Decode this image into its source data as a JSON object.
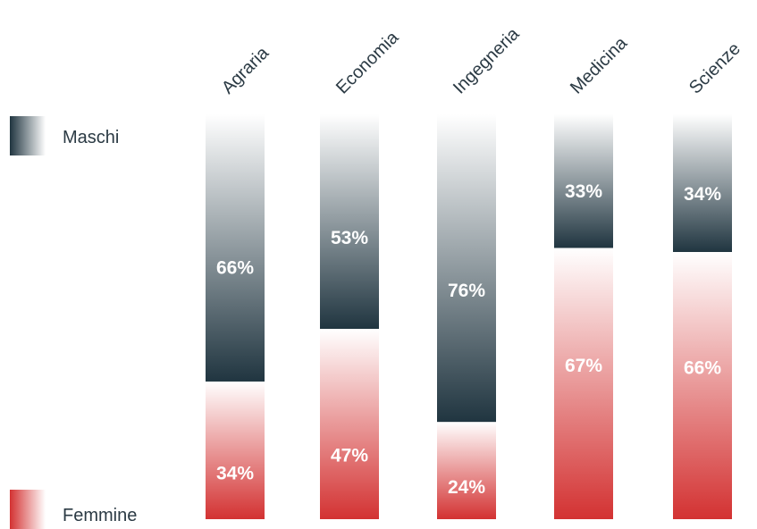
{
  "chart_data": {
    "type": "bar",
    "stacked": true,
    "percent": true,
    "categories": [
      "Agraria",
      "Economia",
      "Ingegneria",
      "Medicina",
      "Scienze"
    ],
    "series": [
      {
        "name": "Maschi",
        "values": [
          66,
          53,
          76,
          33,
          34
        ],
        "labels": [
          "66%",
          "53%",
          "76%",
          "33%",
          "34%"
        ],
        "color_dark": "#203540",
        "color_light": "#ffffff"
      },
      {
        "name": "Femmine",
        "values": [
          34,
          47,
          24,
          67,
          66
        ],
        "labels": [
          "34%",
          "47%",
          "24%",
          "67%",
          "66%"
        ],
        "color_dark": "#d33232",
        "color_light": "#ffffff"
      }
    ],
    "ylim": [
      0,
      100
    ],
    "grid": false,
    "legend_placement": "left",
    "title": "",
    "xlabel": "",
    "ylabel": ""
  }
}
